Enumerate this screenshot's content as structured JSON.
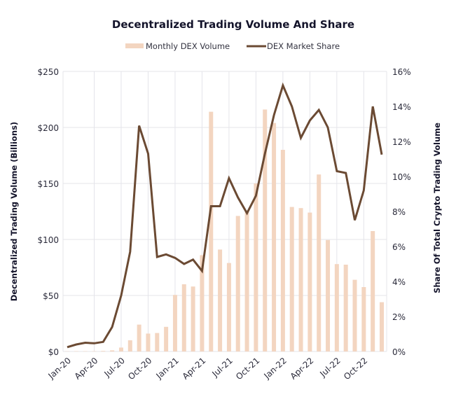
{
  "chart_data": {
    "type": "bar+line",
    "title": "Decentralized Trading Volume And Share",
    "legend": {
      "placement": "top-center",
      "entries": [
        {
          "label": "Monthly DEX Volume",
          "kind": "bar",
          "color": "#f3d5c0"
        },
        {
          "label": "DEX Market Share",
          "kind": "line",
          "color": "#6b4a33"
        }
      ]
    },
    "grid": true,
    "x": [
      "Jan-20",
      "Feb-20",
      "Mar-20",
      "Apr-20",
      "May-20",
      "Jun-20",
      "Jul-20",
      "Aug-20",
      "Sep-20",
      "Oct-20",
      "Nov-20",
      "Dec-20",
      "Jan-21",
      "Feb-21",
      "Mar-21",
      "Apr-21",
      "May-21",
      "Jun-21",
      "Jul-21",
      "Aug-21",
      "Sep-21",
      "Oct-21",
      "Nov-21",
      "Dec-21",
      "Jan-22",
      "Feb-22",
      "Mar-22",
      "Apr-22",
      "May-22",
      "Jun-22",
      "Jul-22",
      "Aug-22",
      "Sep-22",
      "Oct-22",
      "Nov-22",
      "Dec-22"
    ],
    "xtick_labels": [
      "Jan-20",
      "Apr-20",
      "Jul-20",
      "Oct-20",
      "Jan-21",
      "Apr-21",
      "Jul-21",
      "Oct-21",
      "Jan-22",
      "Apr-22",
      "Jul-22",
      "Oct-22"
    ],
    "xtick_step_months": 3,
    "left_axis": {
      "label": "Decentralized Trading Volume (Billions)",
      "ylim": [
        0,
        250
      ],
      "ticks": [
        0,
        50,
        100,
        150,
        200,
        250
      ],
      "tick_labels": [
        "$0",
        "$50",
        "$100",
        "$150",
        "$200",
        "$250"
      ]
    },
    "right_axis": {
      "label": "Share Of Total Crypto Trading Volume",
      "ylim": [
        0,
        16
      ],
      "ticks": [
        0,
        2,
        4,
        6,
        8,
        10,
        12,
        14,
        16
      ],
      "tick_labels": [
        "0%",
        "2%",
        "4%",
        "6%",
        "8%",
        "10%",
        "12%",
        "14%",
        "16%"
      ]
    },
    "series": [
      {
        "name": "Monthly DEX Volume",
        "type": "bar",
        "axis": "left",
        "values": [
          0.2,
          0.3,
          0.3,
          0.3,
          0.5,
          1,
          3.5,
          10,
          24,
          16,
          16.5,
          22,
          50.5,
          60,
          58,
          86,
          214,
          91,
          79,
          121,
          126,
          150,
          216,
          204,
          180,
          129,
          128,
          124,
          158,
          99.5,
          78,
          77.5,
          64,
          57.5,
          107.5,
          44
        ]
      },
      {
        "name": "DEX Market Share",
        "type": "line",
        "axis": "right",
        "values": [
          0.25,
          0.4,
          0.5,
          0.47,
          0.55,
          1.4,
          3.2,
          5.7,
          12.9,
          11.3,
          5.4,
          5.55,
          5.35,
          5.0,
          5.25,
          4.6,
          8.3,
          8.3,
          9.9,
          8.8,
          7.9,
          8.9,
          11.3,
          13.5,
          15.2,
          14.0,
          12.2,
          13.2,
          13.8,
          12.8,
          10.3,
          10.2,
          7.5,
          9.2,
          14.0,
          11.25
        ]
      }
    ]
  }
}
